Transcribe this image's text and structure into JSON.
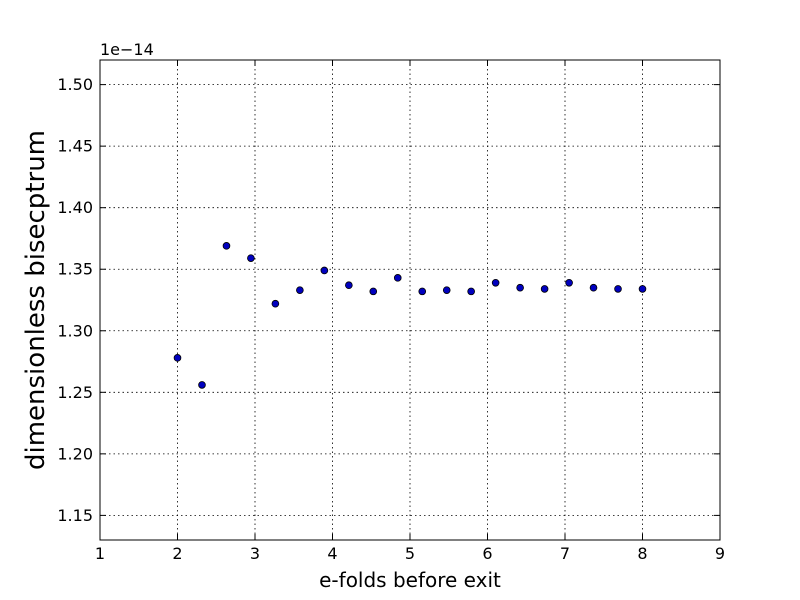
{
  "chart_data": {
    "type": "scatter",
    "title": "",
    "xlabel": "e-folds before exit",
    "ylabel": "dimensionless bisecptrum",
    "offset_label": "1e−14",
    "xlim": [
      1,
      9
    ],
    "ylim": [
      1.13,
      1.52
    ],
    "x_ticks": [
      1,
      2,
      3,
      4,
      5,
      6,
      7,
      8,
      9
    ],
    "x_tick_labels": [
      "1",
      "2",
      "3",
      "4",
      "5",
      "6",
      "7",
      "8",
      "9"
    ],
    "y_ticks": [
      1.15,
      1.2,
      1.25,
      1.3,
      1.35,
      1.4,
      1.45,
      1.5
    ],
    "y_tick_labels": [
      "1.15",
      "1.20",
      "1.25",
      "1.30",
      "1.35",
      "1.40",
      "1.45",
      "1.50"
    ],
    "grid": true,
    "marker_color": "#0000bf",
    "series": [
      {
        "x": [
          2.0,
          2.316,
          2.632,
          2.947,
          3.263,
          3.579,
          3.895,
          4.211,
          4.526,
          4.842,
          5.158,
          5.474,
          5.789,
          6.105,
          6.421,
          6.737,
          7.053,
          7.368,
          7.684,
          8.0
        ],
        "y": [
          1.278,
          1.256,
          1.369,
          1.359,
          1.322,
          1.333,
          1.349,
          1.337,
          1.332,
          1.343,
          1.332,
          1.333,
          1.332,
          1.339,
          1.335,
          1.334,
          1.339,
          1.335,
          1.334,
          1.334
        ]
      }
    ]
  }
}
